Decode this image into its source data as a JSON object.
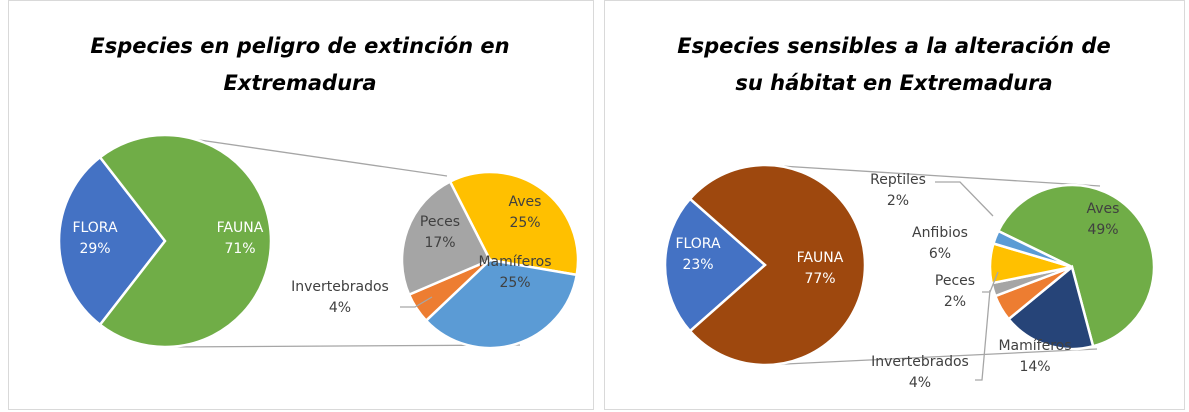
{
  "chart_data": [
    {
      "type": "pie-of-pie",
      "title": "Especies en peligro de extinción en Extremadura",
      "categories": [
        "FLORA",
        "FAUNA"
      ],
      "values": [
        29,
        71
      ],
      "value_labels": [
        "29%",
        "71%"
      ],
      "colors": [
        "#4472c4",
        "#70ad47"
      ],
      "breakdown": {
        "categories": [
          "Aves",
          "Mamíferos",
          "Invertebrados",
          "Peces"
        ],
        "values": [
          25,
          25,
          4,
          17
        ],
        "value_labels": [
          "25%",
          "25%",
          "4%",
          "17%"
        ],
        "colors": [
          "#ffc000",
          "#5b9bd5",
          "#ed7d31",
          "#a5a5a5"
        ]
      }
    },
    {
      "type": "pie-of-pie",
      "title": "Especies sensibles a la alteración de su hábitat en Extremadura",
      "categories": [
        "FLORA",
        "FAUNA"
      ],
      "values": [
        23,
        77
      ],
      "value_labels": [
        "23%",
        "77%"
      ],
      "colors": [
        "#4472c4",
        "#9e480e"
      ],
      "breakdown": {
        "categories": [
          "Aves",
          "Mamíferos",
          "Invertebrados",
          "Peces",
          "Anfibios",
          "Reptiles"
        ],
        "values": [
          49,
          14,
          4,
          2,
          6,
          2
        ],
        "value_labels": [
          "49%",
          "14%",
          "4%",
          "2%",
          "6%",
          "2%"
        ],
        "colors": [
          "#70ad47",
          "#264478",
          "#ed7d31",
          "#a5a5a5",
          "#ffc000",
          "#5b9bd5"
        ]
      }
    }
  ]
}
